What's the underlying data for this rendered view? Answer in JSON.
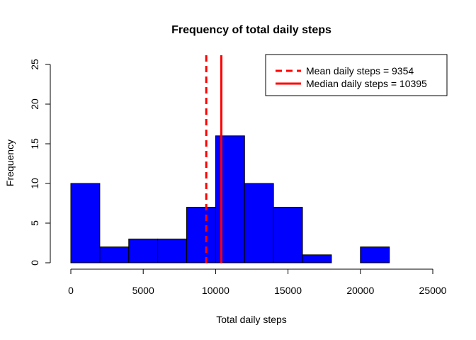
{
  "chart_data": {
    "type": "bar",
    "title": "Frequency of total daily steps",
    "xlabel": "Total daily steps",
    "ylabel": "Frequency",
    "xlim": [
      0,
      25000
    ],
    "ylim": [
      0,
      25
    ],
    "x_ticks": [
      0,
      5000,
      10000,
      15000,
      20000,
      25000
    ],
    "y_ticks": [
      0,
      5,
      10,
      15,
      20,
      25
    ],
    "bin_edges": [
      0,
      2000,
      4000,
      6000,
      8000,
      10000,
      12000,
      14000,
      16000,
      18000,
      20000,
      22000
    ],
    "values": [
      10,
      2,
      3,
      3,
      7,
      16,
      10,
      7,
      1,
      0,
      2
    ],
    "bar_color": "#0000ff",
    "line_color": "#ff0000",
    "grid": false,
    "legend_position": "top-right",
    "reference_lines": [
      {
        "name": "Mean daily steps = 9354",
        "value": 9354,
        "style": "dashed"
      },
      {
        "name": "Median daily steps = 10395",
        "value": 10395,
        "style": "solid"
      }
    ]
  }
}
